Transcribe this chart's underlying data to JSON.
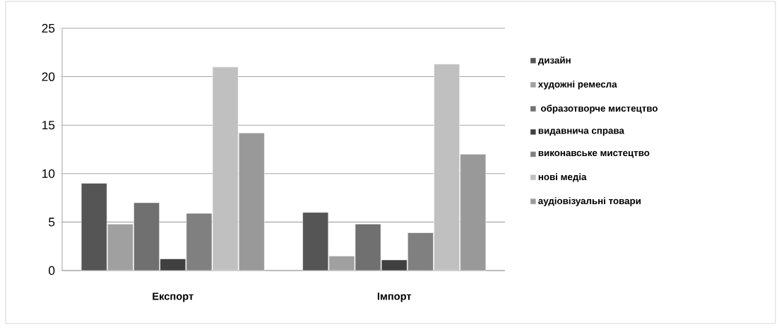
{
  "chart_data": {
    "type": "bar",
    "categories": [
      "Експорт",
      "Імпорт"
    ],
    "series": [
      {
        "name": "дизайн",
        "color": "#555555",
        "values": [
          9.0,
          6.0
        ]
      },
      {
        "name": "художні ремесла",
        "color": "#a0a0a0",
        "values": [
          4.8,
          1.5
        ]
      },
      {
        "name": " образотворче мистецтво",
        "color": "#707070",
        "values": [
          7.0,
          4.8
        ]
      },
      {
        "name": "видавнича справа",
        "color": "#404040",
        "values": [
          1.2,
          1.1
        ]
      },
      {
        "name": "виконавське мистецтво",
        "color": "#808080",
        "values": [
          5.9,
          3.9
        ]
      },
      {
        "name": "нові медіа",
        "color": "#c0c0c0",
        "values": [
          21.0,
          21.3
        ]
      },
      {
        "name": "аудіовізуальні товари",
        "color": "#999999",
        "values": [
          14.2,
          12.0
        ]
      }
    ],
    "ylim": [
      0,
      25
    ],
    "yticks": [
      0,
      5,
      10,
      15,
      20,
      25
    ],
    "grid": "y",
    "legend": "right"
  }
}
